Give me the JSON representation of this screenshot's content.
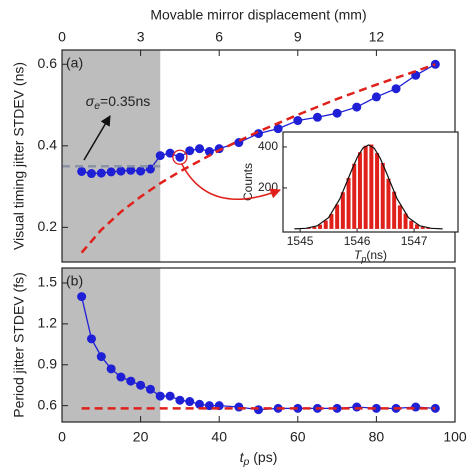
{
  "chart_data": [
    {
      "type": "line",
      "panel_label": "(a)",
      "ylabel": "Visual timing jitter STDEV (ns)",
      "x2label": "Movable mirror displacement (mm)",
      "x2lim": [
        0,
        15
      ],
      "x2ticks": [
        0,
        3,
        6,
        9,
        12
      ],
      "xlim": [
        0,
        100
      ],
      "ylim": [
        0.115,
        0.635
      ],
      "yticks": [
        0.2,
        0.4,
        0.6
      ],
      "shade": [
        0,
        25
      ],
      "annotation": {
        "symbol": "σ",
        "subscript": "e",
        "text": "=0.35ns"
      },
      "series": [
        {
          "color": "#1f1fd6",
          "marker": true,
          "x": [
            5,
            7.5,
            10,
            12.5,
            15,
            17.5,
            20,
            22.5,
            25,
            27.5,
            30,
            32.5,
            35,
            37.5,
            40,
            45,
            50,
            55,
            60,
            65,
            70,
            75,
            80,
            85,
            90,
            95
          ],
          "values": [
            0.337,
            0.332,
            0.333,
            0.336,
            0.338,
            0.34,
            0.338,
            0.343,
            0.376,
            0.382,
            0.372,
            0.388,
            0.393,
            0.386,
            0.393,
            0.408,
            0.43,
            0.442,
            0.462,
            0.47,
            0.48,
            0.495,
            0.52,
            0.54,
            0.573,
            0.6
          ]
        },
        {
          "color": "#e0201b",
          "dash": true,
          "x": [
            5,
            10,
            15,
            20,
            25,
            30,
            40,
            50,
            60,
            70,
            80,
            90,
            95
          ],
          "values": [
            0.138,
            0.194,
            0.238,
            0.275,
            0.308,
            0.337,
            0.389,
            0.435,
            0.476,
            0.515,
            0.55,
            0.583,
            0.6
          ]
        },
        {
          "color": "#8a94a6",
          "dash": true,
          "x": [
            0,
            25
          ],
          "values": [
            0.35,
            0.35
          ]
        }
      ]
    },
    {
      "type": "line",
      "panel_label": "(b)",
      "ylabel": "Period jitter STDEV (fs)",
      "xlabel": {
        "symbol": "t",
        "subscript": "p",
        "text": " (ps)"
      },
      "xlim": [
        0,
        100
      ],
      "xticks": [
        0,
        20,
        40,
        60,
        80,
        100
      ],
      "ylim": [
        0.48,
        1.61
      ],
      "yticks": [
        0.6,
        0.9,
        1.2,
        1.5
      ],
      "shade": [
        0,
        25
      ],
      "series": [
        {
          "color": "#1f1fd6",
          "marker": true,
          "x": [
            5,
            7.5,
            10,
            12.5,
            15,
            17.5,
            20,
            22.5,
            25,
            27.5,
            30,
            32.5,
            35,
            37.5,
            40,
            45,
            50,
            55,
            60,
            65,
            70,
            75,
            80,
            85,
            90,
            95
          ],
          "values": [
            1.4,
            1.09,
            0.96,
            0.87,
            0.81,
            0.78,
            0.75,
            0.72,
            0.67,
            0.67,
            0.64,
            0.63,
            0.61,
            0.6,
            0.6,
            0.59,
            0.57,
            0.58,
            0.58,
            0.58,
            0.58,
            0.59,
            0.58,
            0.58,
            0.59,
            0.58
          ]
        },
        {
          "color": "#e0201b",
          "dash": true,
          "x": [
            5,
            95
          ],
          "values": [
            0.58,
            0.58
          ]
        }
      ]
    },
    {
      "type": "histogram",
      "ylabel": "Counts",
      "xlabel": {
        "symbol": "T",
        "subscript": "p",
        "text": "(ns)"
      },
      "xlim": [
        1544.7,
        1547.77
      ],
      "xticks": [
        1545,
        1546,
        1547
      ],
      "ylim": [
        -15,
        473
      ],
      "yticks": [
        200,
        400
      ],
      "color": "#e0201b",
      "bins": [
        1544.9,
        1545.0,
        1545.1,
        1545.2,
        1545.3,
        1545.4,
        1545.5,
        1545.6,
        1545.7,
        1545.8,
        1545.9,
        1546.0,
        1546.1,
        1546.2,
        1546.3,
        1546.4,
        1546.5,
        1546.6,
        1546.7,
        1546.8,
        1546.9,
        1547.0,
        1547.1,
        1547.2,
        1547.3,
        1547.4,
        1547.5
      ],
      "counts": [
        1,
        2,
        5,
        10,
        21,
        41,
        73,
        119,
        179,
        249,
        318,
        374,
        406,
        412,
        370,
        322,
        245,
        182,
        115,
        75,
        40,
        22,
        9,
        5,
        2,
        1
      ],
      "fit": {
        "color": "#111111",
        "x": [
          1544.9,
          1545.1,
          1545.3,
          1545.5,
          1545.7,
          1545.9,
          1546.0,
          1546.1,
          1546.2,
          1546.3,
          1546.4,
          1546.5,
          1546.7,
          1546.9,
          1547.1,
          1547.3,
          1547.5
        ],
        "values": [
          0.4,
          3,
          15,
          55.5,
          148,
          284,
          348,
          394,
          410,
          394,
          348,
          284,
          148,
          55.5,
          15,
          3,
          0.4
        ]
      }
    }
  ]
}
